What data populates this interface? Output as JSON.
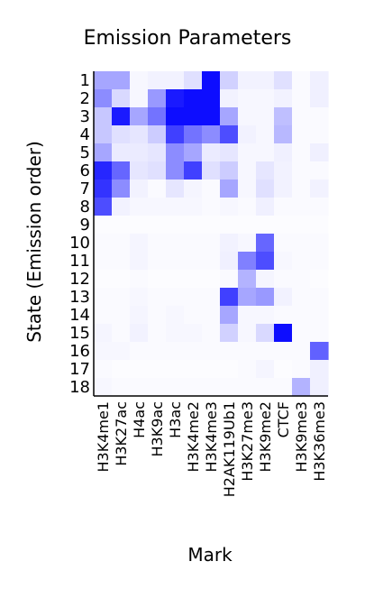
{
  "chart_data": {
    "type": "heatmap",
    "title": "Emission Parameters",
    "xlabel": "Mark",
    "ylabel": "State (Emission order)",
    "columns": [
      "H3K4me1",
      "H3K27ac",
      "H4ac",
      "H3K9ac",
      "H3ac",
      "H3K4me2",
      "H3K4me3",
      "H2AK119Ub1",
      "H3K27me3",
      "H3K9me2",
      "CTCF",
      "H3K9me3",
      "H3K36me3"
    ],
    "rows": [
      "1",
      "2",
      "3",
      "4",
      "5",
      "6",
      "7",
      "8",
      "9",
      "10",
      "11",
      "12",
      "13",
      "14",
      "15",
      "16",
      "17",
      "18"
    ],
    "value_range": [
      0,
      1
    ],
    "color_low": "#ffffff",
    "color_high": "#0000ff",
    "values": [
      [
        0.35,
        0.35,
        0.03,
        0.05,
        0.05,
        0.12,
        0.95,
        0.18,
        0.05,
        0.05,
        0.12,
        0.02,
        0.06
      ],
      [
        0.45,
        0.15,
        0.03,
        0.4,
        0.9,
        0.95,
        0.95,
        0.05,
        0.03,
        0.03,
        0.05,
        0.02,
        0.06
      ],
      [
        0.22,
        0.9,
        0.35,
        0.55,
        0.95,
        0.95,
        0.95,
        0.35,
        0.03,
        0.03,
        0.25,
        0.02,
        0.02
      ],
      [
        0.22,
        0.12,
        0.1,
        0.2,
        0.75,
        0.55,
        0.45,
        0.7,
        0.05,
        0.03,
        0.28,
        0.02,
        0.02
      ],
      [
        0.35,
        0.08,
        0.08,
        0.1,
        0.45,
        0.35,
        0.08,
        0.1,
        0.03,
        0.03,
        0.06,
        0.02,
        0.06
      ],
      [
        0.85,
        0.6,
        0.1,
        0.12,
        0.45,
        0.75,
        0.12,
        0.2,
        0.03,
        0.1,
        0.05,
        0.02,
        0.02
      ],
      [
        0.8,
        0.45,
        0.05,
        0.02,
        0.1,
        0.04,
        0.02,
        0.35,
        0.03,
        0.12,
        0.05,
        0.02,
        0.05
      ],
      [
        0.7,
        0.05,
        0.03,
        0.03,
        0.03,
        0.03,
        0.02,
        0.03,
        0.02,
        0.06,
        0.02,
        0.02,
        0.02
      ],
      [
        0.01,
        0.01,
        0.01,
        0.01,
        0.01,
        0.01,
        0.01,
        0.01,
        0.01,
        0.01,
        0.01,
        0.01,
        0.01
      ],
      [
        0.02,
        0.02,
        0.04,
        0.02,
        0.02,
        0.02,
        0.02,
        0.05,
        0.03,
        0.6,
        0.02,
        0.02,
        0.02
      ],
      [
        0.02,
        0.02,
        0.04,
        0.02,
        0.02,
        0.02,
        0.02,
        0.06,
        0.5,
        0.7,
        0.03,
        0.02,
        0.02
      ],
      [
        0.01,
        0.01,
        0.02,
        0.01,
        0.01,
        0.01,
        0.01,
        0.02,
        0.3,
        0.04,
        0.02,
        0.02,
        0.01
      ],
      [
        0.02,
        0.02,
        0.03,
        0.02,
        0.02,
        0.02,
        0.02,
        0.75,
        0.35,
        0.4,
        0.05,
        0.02,
        0.02
      ],
      [
        0.02,
        0.02,
        0.04,
        0.02,
        0.03,
        0.02,
        0.02,
        0.35,
        0.03,
        0.03,
        0.02,
        0.02,
        0.02
      ],
      [
        0.04,
        0.02,
        0.05,
        0.02,
        0.03,
        0.03,
        0.02,
        0.18,
        0.03,
        0.15,
        0.95,
        0.02,
        0.02
      ],
      [
        0.03,
        0.03,
        0.02,
        0.02,
        0.02,
        0.02,
        0.02,
        0.02,
        0.02,
        0.02,
        0.02,
        0.02,
        0.62
      ],
      [
        0.02,
        0.01,
        0.01,
        0.01,
        0.01,
        0.01,
        0.01,
        0.01,
        0.02,
        0.04,
        0.01,
        0.02,
        0.06
      ],
      [
        0.03,
        0.02,
        0.02,
        0.02,
        0.02,
        0.02,
        0.02,
        0.02,
        0.02,
        0.02,
        0.02,
        0.3,
        0.06
      ]
    ]
  }
}
